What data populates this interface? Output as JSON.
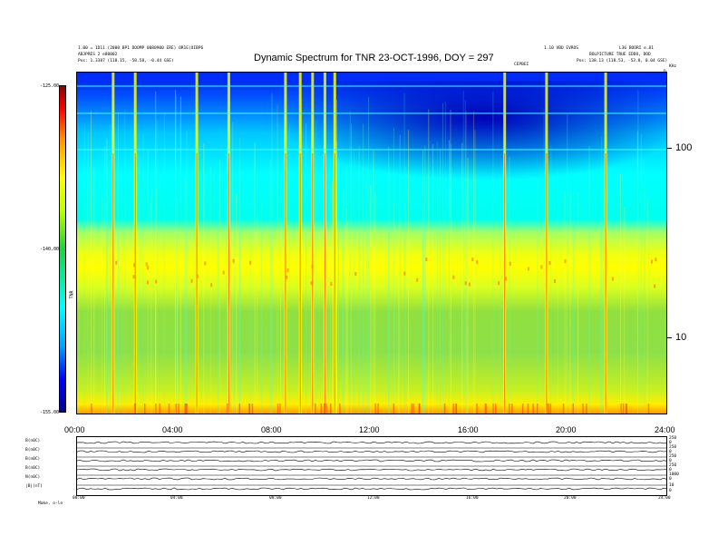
{
  "header": {
    "left_line1": "1.00 = 1D11 (2000 BP1 DOOMP 0080900 ERE)  OR1E(OIBP6",
    "left_line2": "ABJPRES 2 e80002",
    "left_pos": "Pos:   1.3387 (118.15, -58.58, -0.44 GSE)",
    "right_line1": "1.10 VBD EVROS",
    "right_line2": "L36 BOORI e.81",
    "right_line3": "BOLPICTURE TRUE EDDO, DOD",
    "right_pos": "Pos:   138.13 (118.53, -53.8, 0.04 GSE)",
    "mid_small": "CEPBEI",
    "right_corner": "KHz",
    "vcorner": "D"
  },
  "chart_data": {
    "type": "heatmap",
    "title": "Dynamic Spectrum for TNR 23-OCT-1996, DOY = 297",
    "x_ticks": [
      "00:00",
      "04:00",
      "08:00",
      "12:00",
      "16:00",
      "20:00",
      "24:00"
    ],
    "x_range_hours": [
      0,
      24
    ],
    "y_scale": "log",
    "y_ticks_khz": [
      10,
      100
    ],
    "y_tick_labels": [
      "10",
      "100"
    ],
    "y_range_khz": [
      4,
      250
    ],
    "colorbar": {
      "ticks": [
        "-125.00",
        "-140.00",
        "-155.00"
      ],
      "range": [
        -155,
        -125
      ],
      "label": "TNR",
      "colors": [
        "#000090",
        "#0000ff",
        "#00a0ff",
        "#00ffff",
        "#20d040",
        "#c0ff00",
        "#ffff00",
        "#ff9000",
        "#ff0000",
        "#900000"
      ]
    },
    "bursts_hours": [
      1.5,
      2.4,
      4.9,
      6.2,
      8.5,
      9.1,
      9.6,
      10.1,
      10.5,
      17.4,
      19.1,
      21.5
    ]
  },
  "panels": [
    {
      "label": "B(n0C)",
      "right": [
        "250",
        "0"
      ]
    },
    {
      "label": "B(n0C)",
      "right": [
        "250",
        "0"
      ]
    },
    {
      "label": "B(n0C)",
      "right": [
        "250",
        "0"
      ]
    },
    {
      "label": "B(n0C)",
      "right": [
        "250",
        "0"
      ]
    },
    {
      "label": "N(n0C)",
      "right": [
        "1000",
        "0"
      ]
    },
    {
      "label": "|B|(nT)",
      "right": [
        "10",
        "0"
      ]
    }
  ],
  "bottom_ticks": [
    "00:00",
    "04:00",
    "08:00",
    "12:00",
    "16:00",
    "20:00",
    "24:00"
  ],
  "bottom_left": "Make.  o-lo"
}
